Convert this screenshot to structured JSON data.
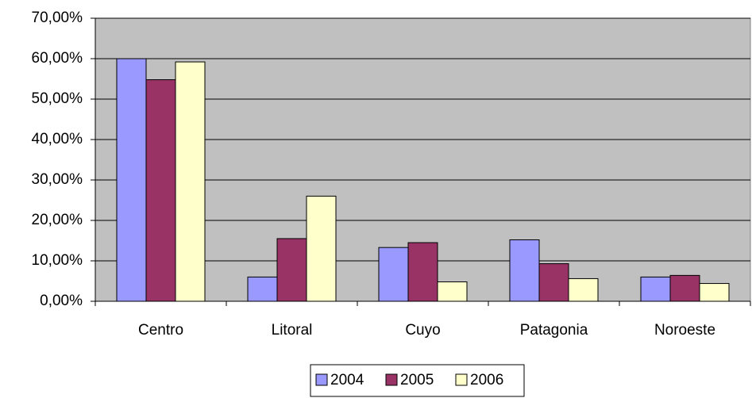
{
  "chart_data": {
    "type": "bar",
    "categories": [
      "Centro",
      "Litoral",
      "Cuyo",
      "Patagonia",
      "Noroeste"
    ],
    "series": [
      {
        "name": "2004",
        "color": "#9999ff",
        "values": [
          60,
          6,
          13.3,
          15.2,
          6
        ]
      },
      {
        "name": "2005",
        "color": "#993366",
        "values": [
          54.8,
          15.5,
          14.5,
          9.3,
          6.4
        ]
      },
      {
        "name": "2006",
        "color": "#ffffcc",
        "values": [
          59.2,
          26,
          4.8,
          5.6,
          4.4
        ]
      }
    ],
    "ylim": [
      0,
      70
    ],
    "yticks": [
      {
        "value": 0,
        "label": "0,00%"
      },
      {
        "value": 10,
        "label": "10,00%"
      },
      {
        "value": 20,
        "label": "20,00%"
      },
      {
        "value": 30,
        "label": "30,00%"
      },
      {
        "value": 40,
        "label": "40,00%"
      },
      {
        "value": 50,
        "label": "50,00%"
      },
      {
        "value": 60,
        "label": "60,00%"
      },
      {
        "value": 70,
        "label": "70,00%"
      }
    ],
    "grid": true,
    "legend": "bottom"
  }
}
